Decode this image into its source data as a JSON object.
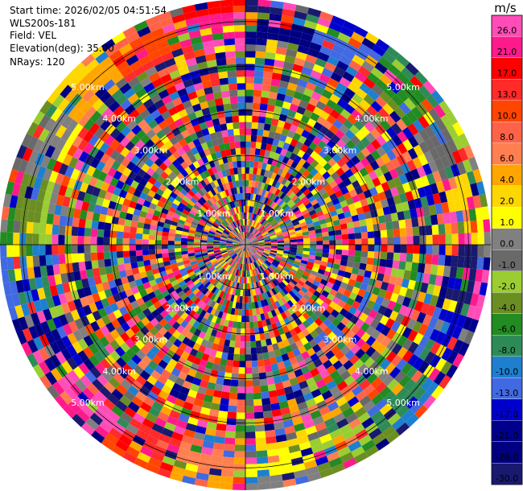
{
  "info": {
    "start_time": "Start time: 2026/02/05 04:51:54",
    "instrument": "WLS200s-181",
    "field": "Field: VEL",
    "elevation": "Elevation(deg): 35.00",
    "nrays": "NRays: 120"
  },
  "colorbar": {
    "unit": "m/s",
    "ticks": [
      "26.0",
      "21.0",
      "17.0",
      "13.0",
      "10.0",
      "8.0",
      "6.0",
      "4.0",
      "2.0",
      "1.0",
      "0.0",
      "-1.0",
      "-2.0",
      "-4.0",
      "-6.0",
      "-8.0",
      "-10.0",
      "-13.0",
      "-17.0",
      "-21.0",
      "-26.0",
      "-30.0"
    ],
    "colors": [
      "#ff4db8",
      "#ff1a8c",
      "#ff0000",
      "#ff2a2a",
      "#ff4500",
      "#ff6347",
      "#ff7f50",
      "#ffa500",
      "#ffd700",
      "#ffff00",
      "#808080",
      "#696969",
      "#9acd32",
      "#6b8e23",
      "#228b22",
      "#2e8b57",
      "#1e7fcf",
      "#4169e1",
      "#0000cd",
      "#00008b",
      "#000080",
      "#191970"
    ]
  },
  "chart_data": {
    "type": "heatmap",
    "projection": "polar (PPI)",
    "field": "VEL",
    "unit": "m/s",
    "n_rays": 120,
    "elevation_deg": 35.0,
    "range_ring_labels": [
      "1.00km",
      "2.00km",
      "3.00km",
      "4.00km",
      "5.00km"
    ],
    "range_rings_km": [
      1,
      2,
      3,
      4,
      5
    ],
    "max_range_km": 5.5,
    "value_range": [
      -30,
      26
    ],
    "grid": true
  }
}
